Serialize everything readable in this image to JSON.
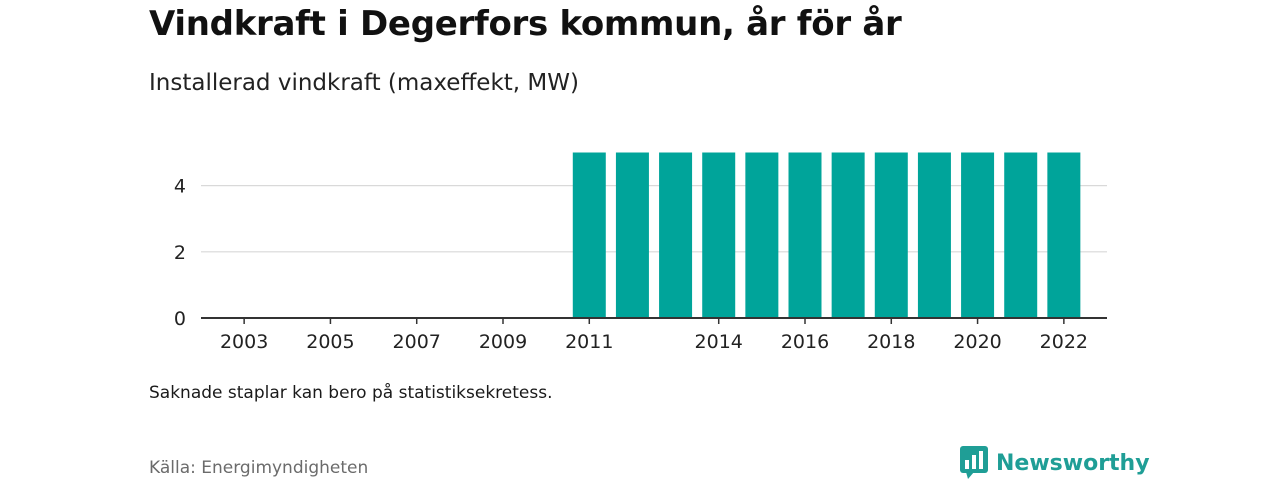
{
  "header": {
    "title": "Vindkraft i Degerfors kommun, år för år",
    "subtitle": "Installerad vindkraft (maxeffekt, MW)"
  },
  "footer": {
    "note": "Saknade staplar kan bero på statistiksekretess.",
    "source": "Källa: Energimyndigheten",
    "logo_text": "Newsworthy"
  },
  "colors": {
    "bar": "#00a49a",
    "grid": "#d9d9d9",
    "axis": "#333333",
    "brand": "#1f9e96"
  },
  "chart_data": {
    "type": "bar",
    "categories": [
      "2011",
      "2012",
      "2013",
      "2014",
      "2015",
      "2016",
      "2017",
      "2018",
      "2019",
      "2020",
      "2021",
      "2022"
    ],
    "values": [
      5,
      5,
      5,
      5,
      5,
      5,
      5,
      5,
      5,
      5,
      5,
      5
    ],
    "x_range": [
      2002,
      2023
    ],
    "x_ticks": [
      "2003",
      "2005",
      "2007",
      "2009",
      "2011",
      "2014",
      "2016",
      "2018",
      "2020",
      "2022"
    ],
    "y_ticks": [
      "0",
      "2",
      "4"
    ],
    "ylim": [
      0,
      5
    ],
    "grid": true,
    "title": "Vindkraft i Degerfors kommun, år för år",
    "subtitle": "Installerad vindkraft (maxeffekt, MW)",
    "xlabel": "",
    "ylabel": ""
  }
}
